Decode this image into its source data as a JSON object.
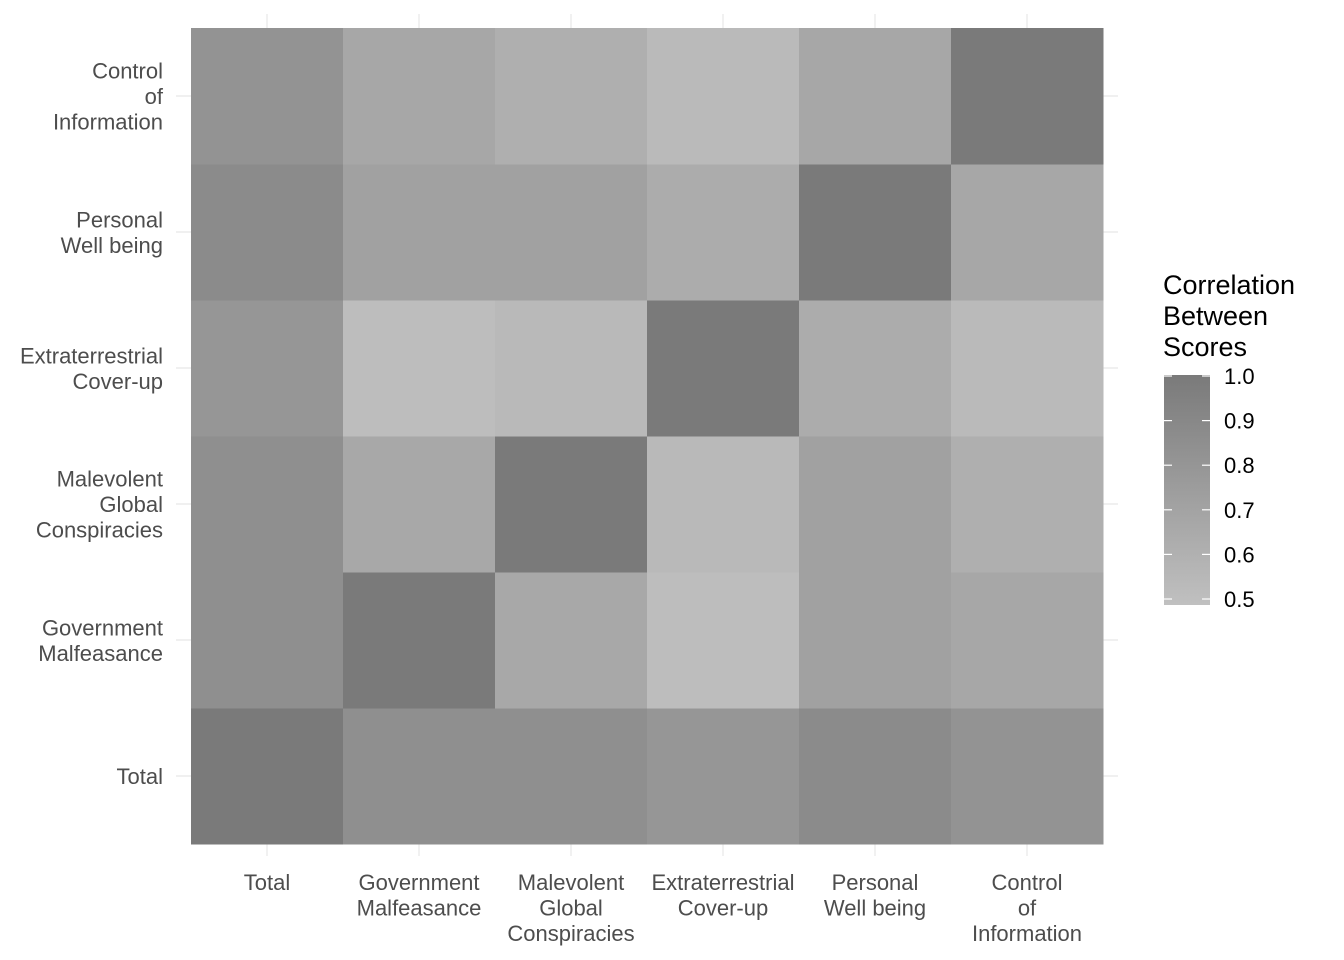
{
  "chart_data": {
    "type": "heatmap",
    "title": "",
    "xlabel": "",
    "ylabel": "",
    "x_categories": [
      "Total",
      "Government Malfeasance",
      "Malevolent Global Conspiracies",
      "Extraterrestrial Cover-up",
      "Personal Well being",
      "Control of Information"
    ],
    "y_categories": [
      "Total",
      "Government Malfeasance",
      "Malevolent Global Conspiracies",
      "Extraterrestrial Cover-up",
      "Personal Well being",
      "Control of Information"
    ],
    "x_tick_lines": [
      [
        "Total"
      ],
      [
        "Government",
        "Malfeasance"
      ],
      [
        "Malevolent",
        "Global",
        "Conspiracies"
      ],
      [
        "Extraterrestrial",
        "Cover-up"
      ],
      [
        "Personal",
        "Well being"
      ],
      [
        "Control",
        "of",
        "Information"
      ]
    ],
    "y_tick_lines": [
      [
        "Total"
      ],
      [
        "Government",
        "Malfeasance"
      ],
      [
        "Malevolent",
        "Global",
        "Conspiracies"
      ],
      [
        "Extraterrestrial",
        "Cover-up"
      ],
      [
        "Personal",
        "Well being"
      ],
      [
        "Control",
        "of",
        "Information"
      ]
    ],
    "values": [
      [
        1.0,
        0.85,
        0.85,
        0.8,
        0.88,
        0.82
      ],
      [
        0.85,
        1.0,
        0.67,
        0.52,
        0.72,
        0.68
      ],
      [
        0.85,
        0.67,
        1.0,
        0.55,
        0.72,
        0.62
      ],
      [
        0.8,
        0.52,
        0.55,
        1.0,
        0.64,
        0.54
      ],
      [
        0.88,
        0.72,
        0.72,
        0.64,
        1.0,
        0.68
      ],
      [
        0.82,
        0.68,
        0.62,
        0.54,
        0.68,
        1.0
      ]
    ],
    "legend": {
      "title_lines": [
        "Correlation",
        "Between",
        "Scores"
      ],
      "breaks": [
        "1.0",
        "0.9",
        "0.8",
        "0.7",
        "0.6",
        "0.5"
      ],
      "break_values": [
        1.0,
        0.9,
        0.8,
        0.7,
        0.6,
        0.5
      ],
      "min": 0.5,
      "max": 1.0,
      "low_color": "#c0c0c0",
      "high_color": "#7a7a7a",
      "position": "right"
    },
    "grid": true
  }
}
